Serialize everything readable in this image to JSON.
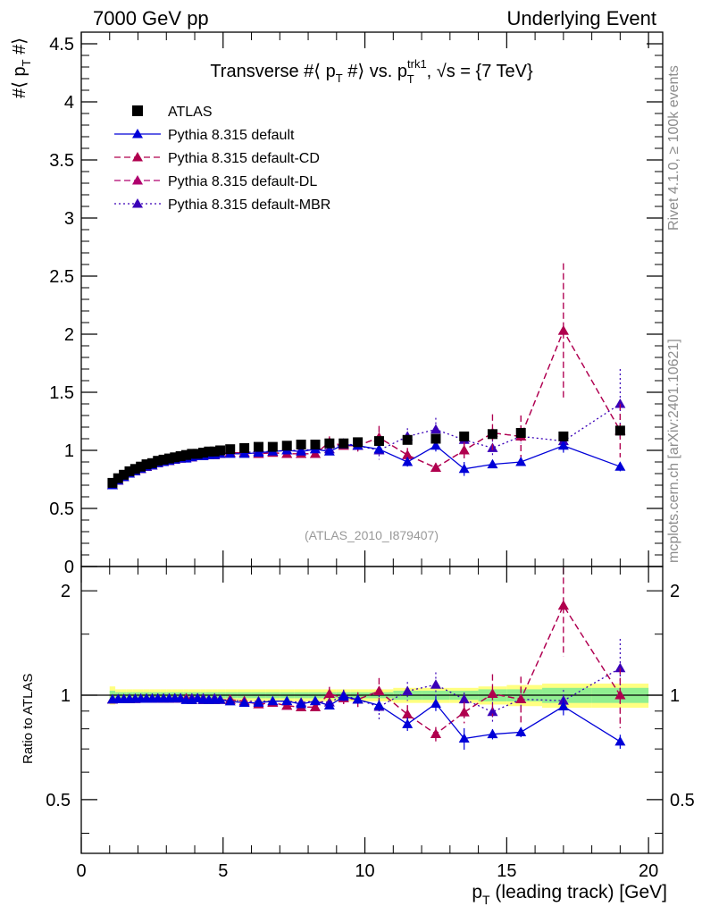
{
  "header": {
    "left": "7000 GeV pp",
    "right": "Underlying Event"
  },
  "side_labels": {
    "rivet": "Rivet 4.1.0, ≥ 100k events",
    "mcplots": "mcplots.cern.ch [arXiv:2401.10621]"
  },
  "chart_data": {
    "type": "scatter",
    "title_parts": {
      "a": "Transverse #⟨ p",
      "a_sub": "T",
      "b": " #⟩ vs. p",
      "b_sup": "trk1",
      "b_sub": "T",
      "c": ", √s = {7 TeV}"
    },
    "ylabel_main_parts": {
      "a": "#⟨ p",
      "sub": "T",
      "b": " #⟩"
    },
    "ylabel_ratio": "Ratio to ATLAS",
    "xlabel_parts": {
      "a": "p",
      "sub": "T",
      "b": " (leading track) [GeV]"
    },
    "analysis_tag": "(ATLAS_2010_I879407)",
    "xlim": [
      0,
      20.5
    ],
    "ylim_main": [
      0,
      4.6
    ],
    "ylim_ratio": [
      0.35,
      2.35
    ],
    "x_ticks": [
      0,
      5,
      10,
      15,
      20
    ],
    "x_tick_labels": [
      "0",
      "5",
      "10",
      "15",
      "20"
    ],
    "y_ticks_main": [
      0,
      0.5,
      1,
      1.5,
      2,
      2.5,
      3,
      3.5,
      4,
      4.5
    ],
    "y_tick_labels_main": [
      "0",
      "0.5",
      "1",
      "1.5",
      "2",
      "2.5",
      "3",
      "3.5",
      "4",
      "4.5"
    ],
    "y_ticks_ratio": [
      0.5,
      1,
      2
    ],
    "y_tick_labels_ratio": [
      "0.5",
      "1",
      "2"
    ],
    "x": [
      1.1,
      1.3,
      1.5,
      1.7,
      1.9,
      2.1,
      2.3,
      2.5,
      2.7,
      2.9,
      3.1,
      3.3,
      3.5,
      3.7,
      3.9,
      4.1,
      4.3,
      4.5,
      4.7,
      4.9,
      5.25,
      5.75,
      6.25,
      6.75,
      7.25,
      7.75,
      8.25,
      8.75,
      9.25,
      9.75,
      10.5,
      11.5,
      12.5,
      13.5,
      14.5,
      15.5,
      17.0,
      19.0
    ],
    "series": [
      {
        "name": "ATLAS",
        "color": "#000000",
        "marker": "square",
        "line": "none",
        "values": [
          0.72,
          0.76,
          0.79,
          0.82,
          0.84,
          0.86,
          0.88,
          0.89,
          0.91,
          0.92,
          0.93,
          0.94,
          0.95,
          0.96,
          0.97,
          0.97,
          0.98,
          0.99,
          0.99,
          1.0,
          1.01,
          1.02,
          1.03,
          1.03,
          1.04,
          1.05,
          1.05,
          1.06,
          1.06,
          1.07,
          1.08,
          1.09,
          1.1,
          1.12,
          1.14,
          1.15,
          1.12,
          1.17
        ]
      },
      {
        "name": "Pythia 8.315 default",
        "color": "#0000d8",
        "marker": "triangle",
        "line": "solid",
        "values": [
          0.7,
          0.74,
          0.77,
          0.8,
          0.82,
          0.84,
          0.86,
          0.87,
          0.89,
          0.9,
          0.91,
          0.92,
          0.93,
          0.93,
          0.94,
          0.95,
          0.95,
          0.96,
          0.96,
          0.97,
          0.97,
          0.97,
          0.98,
          0.99,
          1.0,
          0.99,
          1.01,
          0.99,
          1.05,
          1.04,
          1.01,
          0.9,
          1.04,
          0.84,
          0.88,
          0.9,
          1.04,
          0.86
        ],
        "errors": [
          0.01,
          0.01,
          0.01,
          0.01,
          0.01,
          0.01,
          0.01,
          0.01,
          0.01,
          0.01,
          0.01,
          0.01,
          0.01,
          0.01,
          0.01,
          0.01,
          0.01,
          0.01,
          0.01,
          0.01,
          0.01,
          0.01,
          0.01,
          0.01,
          0.02,
          0.02,
          0.02,
          0.02,
          0.03,
          0.03,
          0.04,
          0.04,
          0.05,
          0.06,
          0.03,
          0.03,
          0.06,
          0.04
        ]
      },
      {
        "name": "Pythia 8.315 default-CD",
        "color": "#b0004e",
        "marker": "triangle",
        "line": "dashed",
        "values": [
          0.7,
          0.74,
          0.77,
          0.8,
          0.82,
          0.84,
          0.86,
          0.87,
          0.89,
          0.9,
          0.91,
          0.92,
          0.93,
          0.94,
          0.94,
          0.95,
          0.95,
          0.96,
          0.96,
          0.97,
          0.98,
          0.98,
          0.97,
          0.98,
          0.97,
          0.97,
          0.97,
          1.07,
          1.04,
          1.04,
          1.11,
          0.96,
          0.85,
          1.0,
          1.15,
          1.12,
          2.03,
          1.17
        ],
        "errors": [
          0.01,
          0.01,
          0.01,
          0.01,
          0.01,
          0.01,
          0.01,
          0.01,
          0.01,
          0.01,
          0.01,
          0.01,
          0.01,
          0.01,
          0.01,
          0.01,
          0.01,
          0.01,
          0.01,
          0.01,
          0.02,
          0.02,
          0.02,
          0.02,
          0.03,
          0.03,
          0.03,
          0.05,
          0.04,
          0.05,
          0.1,
          0.06,
          0.04,
          0.07,
          0.16,
          0.18,
          0.58,
          0.23
        ]
      },
      {
        "name": "Pythia 8.315 default-DL",
        "color": "#b0006e",
        "marker": "triangle",
        "line": "dashed",
        "values": [
          0.7,
          0.74,
          0.77,
          0.8,
          0.82,
          0.84,
          0.86,
          0.87,
          0.89,
          0.9,
          0.91,
          0.92,
          0.93,
          0.94,
          0.94,
          0.95,
          0.95,
          0.96,
          0.96,
          0.97,
          0.98,
          0.98,
          0.97,
          0.98,
          0.97,
          0.97,
          0.97,
          1.07,
          1.04,
          1.04,
          1.11,
          0.96,
          0.85,
          1.0,
          1.15,
          1.12,
          2.03,
          1.17
        ],
        "errors": [
          0.01,
          0.01,
          0.01,
          0.01,
          0.01,
          0.01,
          0.01,
          0.01,
          0.01,
          0.01,
          0.01,
          0.01,
          0.01,
          0.01,
          0.01,
          0.01,
          0.01,
          0.01,
          0.01,
          0.01,
          0.02,
          0.02,
          0.02,
          0.02,
          0.03,
          0.03,
          0.03,
          0.05,
          0.04,
          0.05,
          0.1,
          0.06,
          0.04,
          0.07,
          0.16,
          0.18,
          0.58,
          0.23
        ]
      },
      {
        "name": "Pythia 8.315 default-MBR",
        "color": "#3a00b8",
        "marker": "triangle",
        "line": "dotted",
        "values": [
          0.7,
          0.74,
          0.77,
          0.8,
          0.82,
          0.84,
          0.86,
          0.87,
          0.89,
          0.9,
          0.91,
          0.92,
          0.93,
          0.94,
          0.95,
          0.95,
          0.96,
          0.96,
          0.97,
          0.97,
          0.98,
          0.98,
          0.99,
          0.99,
          1.0,
          1.0,
          1.01,
          1.01,
          1.06,
          1.04,
          1.0,
          1.12,
          1.18,
          1.09,
          1.02,
          1.12,
          1.08,
          1.4
        ],
        "errors": [
          0.01,
          0.01,
          0.01,
          0.01,
          0.01,
          0.01,
          0.01,
          0.01,
          0.01,
          0.01,
          0.01,
          0.01,
          0.01,
          0.01,
          0.01,
          0.01,
          0.01,
          0.01,
          0.01,
          0.01,
          0.02,
          0.02,
          0.02,
          0.02,
          0.03,
          0.03,
          0.03,
          0.04,
          0.04,
          0.05,
          0.08,
          0.07,
          0.1,
          0.05,
          0.07,
          0.06,
          0.08,
          0.3
        ]
      }
    ],
    "ratio_band": {
      "stat_color": "#90ee90",
      "syst_color": "#ffff80",
      "stat_rel": [
        0.03,
        0.02,
        0.02,
        0.02,
        0.02,
        0.02,
        0.02,
        0.02,
        0.02,
        0.02,
        0.02,
        0.02,
        0.02,
        0.02,
        0.02,
        0.02,
        0.02,
        0.02,
        0.02,
        0.02,
        0.02,
        0.02,
        0.02,
        0.02,
        0.02,
        0.02,
        0.02,
        0.02,
        0.02,
        0.02,
        0.02,
        0.03,
        0.03,
        0.03,
        0.04,
        0.04,
        0.05,
        0.05
      ],
      "tot_rel": [
        0.06,
        0.04,
        0.04,
        0.04,
        0.04,
        0.04,
        0.04,
        0.04,
        0.04,
        0.04,
        0.04,
        0.04,
        0.04,
        0.04,
        0.04,
        0.04,
        0.04,
        0.04,
        0.04,
        0.04,
        0.04,
        0.04,
        0.04,
        0.04,
        0.04,
        0.04,
        0.04,
        0.04,
        0.04,
        0.04,
        0.04,
        0.05,
        0.05,
        0.05,
        0.06,
        0.07,
        0.08,
        0.08
      ]
    }
  }
}
